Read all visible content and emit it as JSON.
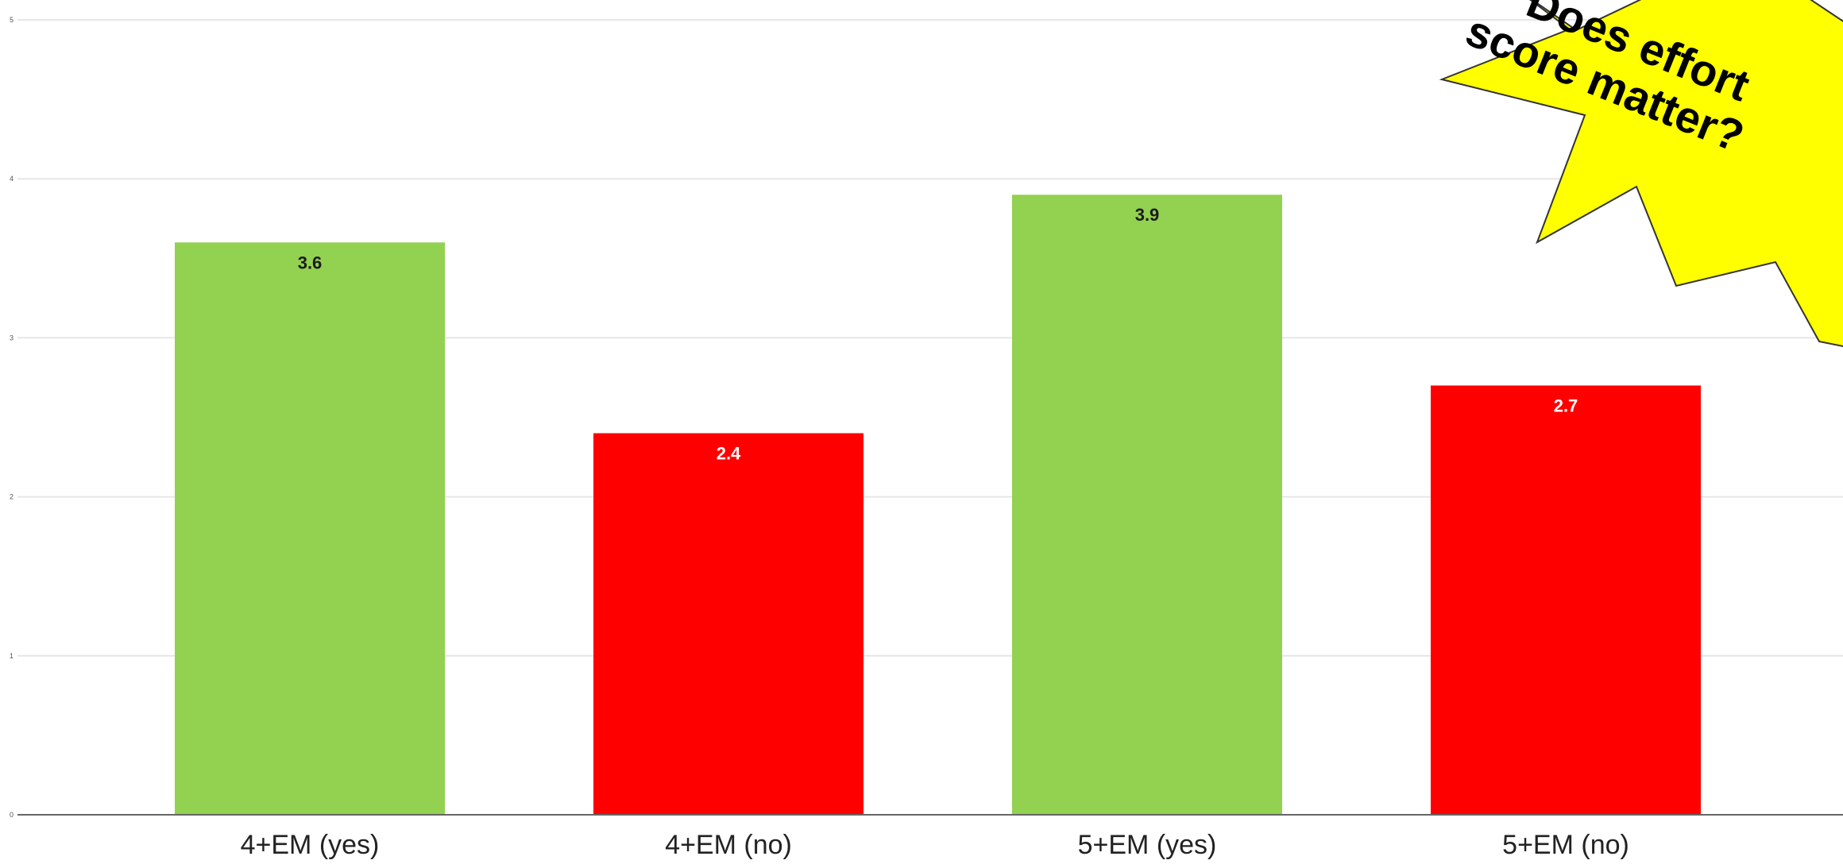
{
  "chart_data": {
    "type": "bar",
    "categories": [
      "4+EM (yes)",
      "4+EM (no)",
      "5+EM (yes)",
      "5+EM (no)"
    ],
    "values": [
      3.6,
      2.4,
      3.9,
      2.7
    ],
    "bar_colors": [
      "#93d150",
      "#ff0000",
      "#93d150",
      "#ff0000"
    ],
    "label_colors": [
      "#1a1a1a",
      "#ffffff",
      "#1a1a1a",
      "#ffffff"
    ],
    "data_labels": [
      "3.6",
      "2.4",
      "3.9",
      "2.7"
    ],
    "title": "",
    "xlabel": "",
    "ylabel": "",
    "ylim": [
      0,
      5
    ],
    "yticks": [
      "0",
      "1",
      "2",
      "3",
      "4",
      "5"
    ],
    "grid": true,
    "legend": "none"
  },
  "callout": {
    "line1": "Does effort",
    "line2": "score matter?",
    "fill_color": "#ffff00",
    "stroke_color": "#333333"
  }
}
